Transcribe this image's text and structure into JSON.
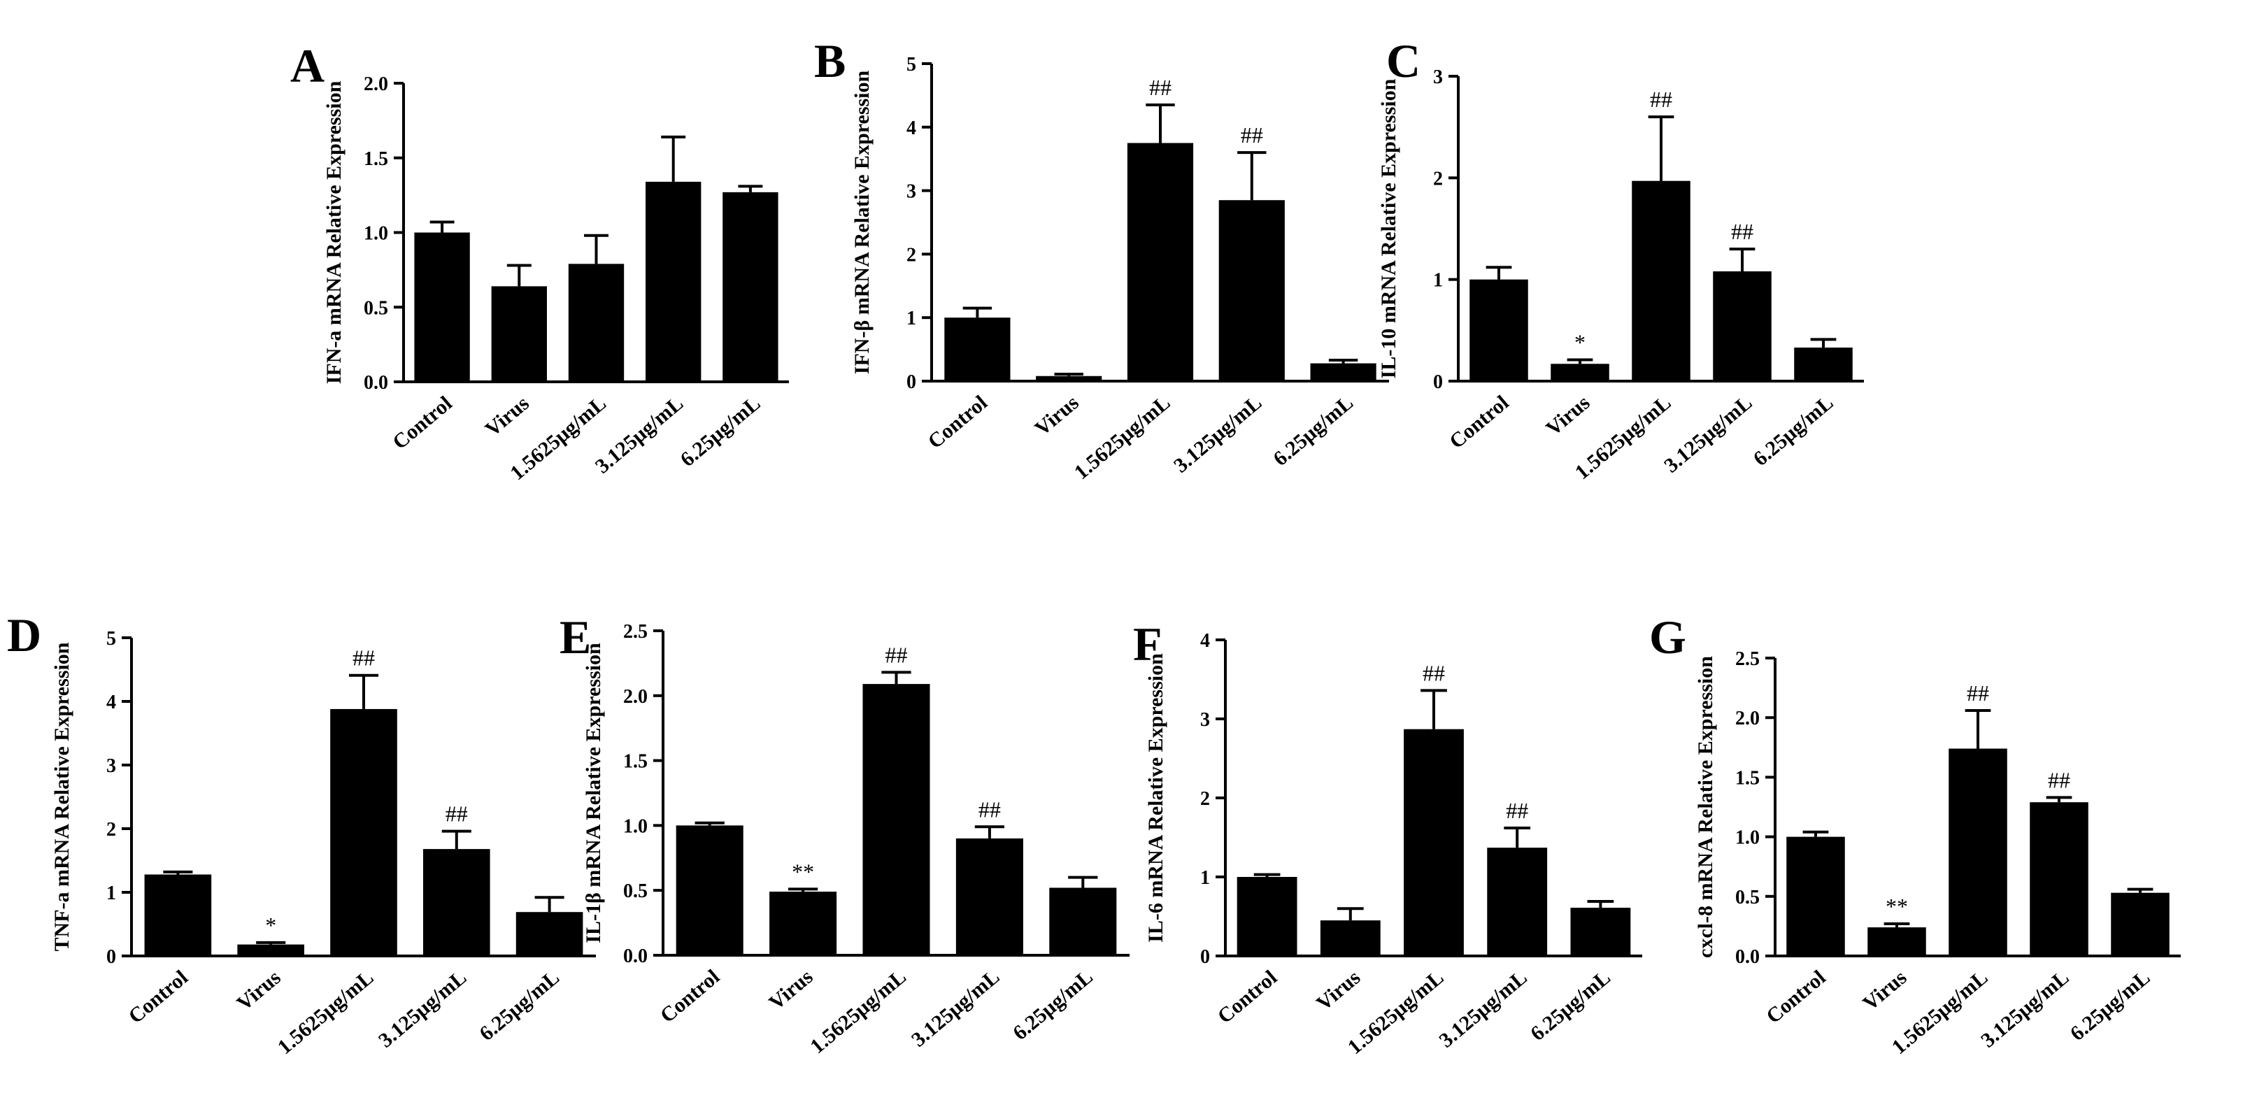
{
  "figure": {
    "categories": [
      "Control",
      "Virus",
      "1.5625μg/mL",
      "3.125μg/mL",
      "6.25μg/mL"
    ],
    "colors": {
      "bar": "#000000",
      "axis": "#000000",
      "background": "#ffffff"
    }
  },
  "chart_data": [
    {
      "type": "bar",
      "panel": "A",
      "title": "",
      "ylabel": "IFN-a mRNA Relative Expression",
      "xlabel": "",
      "ylim": [
        0,
        2.0
      ],
      "yticks": [
        "0.0",
        "0.5",
        "1.0",
        "1.5",
        "2.0"
      ],
      "categories": [
        "Control",
        "Virus",
        "1.5625μg/mL",
        "3.125μg/mL",
        "6.25μg/mL"
      ],
      "values": [
        1.0,
        0.64,
        0.79,
        1.34,
        1.27
      ],
      "errors": [
        0.07,
        0.14,
        0.19,
        0.3,
        0.04
      ],
      "annotations": [
        "",
        "",
        "",
        "",
        ""
      ]
    },
    {
      "type": "bar",
      "panel": "B",
      "title": "",
      "ylabel": "IFN-β mRNA Relative Expression",
      "xlabel": "",
      "ylim": [
        0,
        5
      ],
      "yticks": [
        "0",
        "1",
        "2",
        "3",
        "4",
        "5"
      ],
      "categories": [
        "Control",
        "Virus",
        "1.5625μg/mL",
        "3.125μg/mL",
        "6.25μg/mL"
      ],
      "values": [
        1.0,
        0.08,
        3.75,
        2.85,
        0.28
      ],
      "errors": [
        0.15,
        0.03,
        0.6,
        0.75,
        0.05
      ],
      "annotations": [
        "",
        "",
        "##",
        "##",
        ""
      ]
    },
    {
      "type": "bar",
      "panel": "C",
      "title": "",
      "ylabel": "IL-10 mRNA Relative Expression",
      "xlabel": "",
      "ylim": [
        0,
        3
      ],
      "yticks": [
        "0",
        "1",
        "2",
        "3"
      ],
      "categories": [
        "Control",
        "Virus",
        "1.5625μg/mL",
        "3.125μg/mL",
        "6.25μg/mL"
      ],
      "values": [
        1.0,
        0.17,
        1.97,
        1.08,
        0.33
      ],
      "errors": [
        0.12,
        0.04,
        0.63,
        0.22,
        0.08
      ],
      "annotations": [
        "",
        "*",
        "##",
        "##",
        ""
      ]
    },
    {
      "type": "bar",
      "panel": "D",
      "title": "",
      "ylabel": "TNF-a mRNA Relative Expression",
      "xlabel": "",
      "ylim": [
        0,
        5
      ],
      "yticks": [
        "0",
        "1",
        "2",
        "3",
        "4",
        "5"
      ],
      "categories": [
        "Control",
        "Virus",
        "1.5625μg/mL",
        "3.125μg/mL",
        "6.25μg/mL"
      ],
      "values": [
        1.28,
        0.18,
        3.88,
        1.68,
        0.69
      ],
      "errors": [
        0.04,
        0.03,
        0.53,
        0.28,
        0.23
      ],
      "annotations": [
        "",
        "*",
        "##",
        "##",
        ""
      ]
    },
    {
      "type": "bar",
      "panel": "E",
      "title": "",
      "ylabel": "IL-1β mRNA Relative Expression",
      "xlabel": "",
      "ylim": [
        0,
        2.5
      ],
      "yticks": [
        "0.0",
        "0.5",
        "1.0",
        "1.5",
        "2.0",
        "2.5"
      ],
      "categories": [
        "Control",
        "Virus",
        "1.5625μg/mL",
        "3.125μg/mL",
        "6.25μg/mL"
      ],
      "values": [
        1.0,
        0.49,
        2.09,
        0.9,
        0.52
      ],
      "errors": [
        0.02,
        0.02,
        0.09,
        0.09,
        0.08
      ],
      "annotations": [
        "",
        "**",
        "##",
        "##",
        ""
      ]
    },
    {
      "type": "bar",
      "panel": "F",
      "title": "",
      "ylabel": "IL-6 mRNA Relative Expression",
      "xlabel": "",
      "ylim": [
        0,
        4
      ],
      "yticks": [
        "0",
        "1",
        "2",
        "3",
        "4"
      ],
      "categories": [
        "Control",
        "Virus",
        "1.5625μg/mL",
        "3.125μg/mL",
        "6.25μg/mL"
      ],
      "values": [
        1.0,
        0.45,
        2.87,
        1.37,
        0.61
      ],
      "errors": [
        0.03,
        0.15,
        0.49,
        0.25,
        0.08
      ],
      "annotations": [
        "",
        "",
        "##",
        "##",
        ""
      ]
    },
    {
      "type": "bar",
      "panel": "G",
      "title": "",
      "ylabel": "cxcl-8 mRNA Relative Expression",
      "xlabel": "",
      "ylim": [
        0,
        2.5
      ],
      "yticks": [
        "0.0",
        "0.5",
        "1.0",
        "1.5",
        "2.0",
        "2.5"
      ],
      "categories": [
        "Control",
        "Virus",
        "1.5625μg/mL",
        "3.125μg/mL",
        "6.25μg/mL"
      ],
      "values": [
        1.0,
        0.24,
        1.74,
        1.29,
        0.53
      ],
      "errors": [
        0.04,
        0.03,
        0.32,
        0.04,
        0.03
      ],
      "annotations": [
        "",
        "**",
        "##",
        "##",
        ""
      ]
    }
  ]
}
